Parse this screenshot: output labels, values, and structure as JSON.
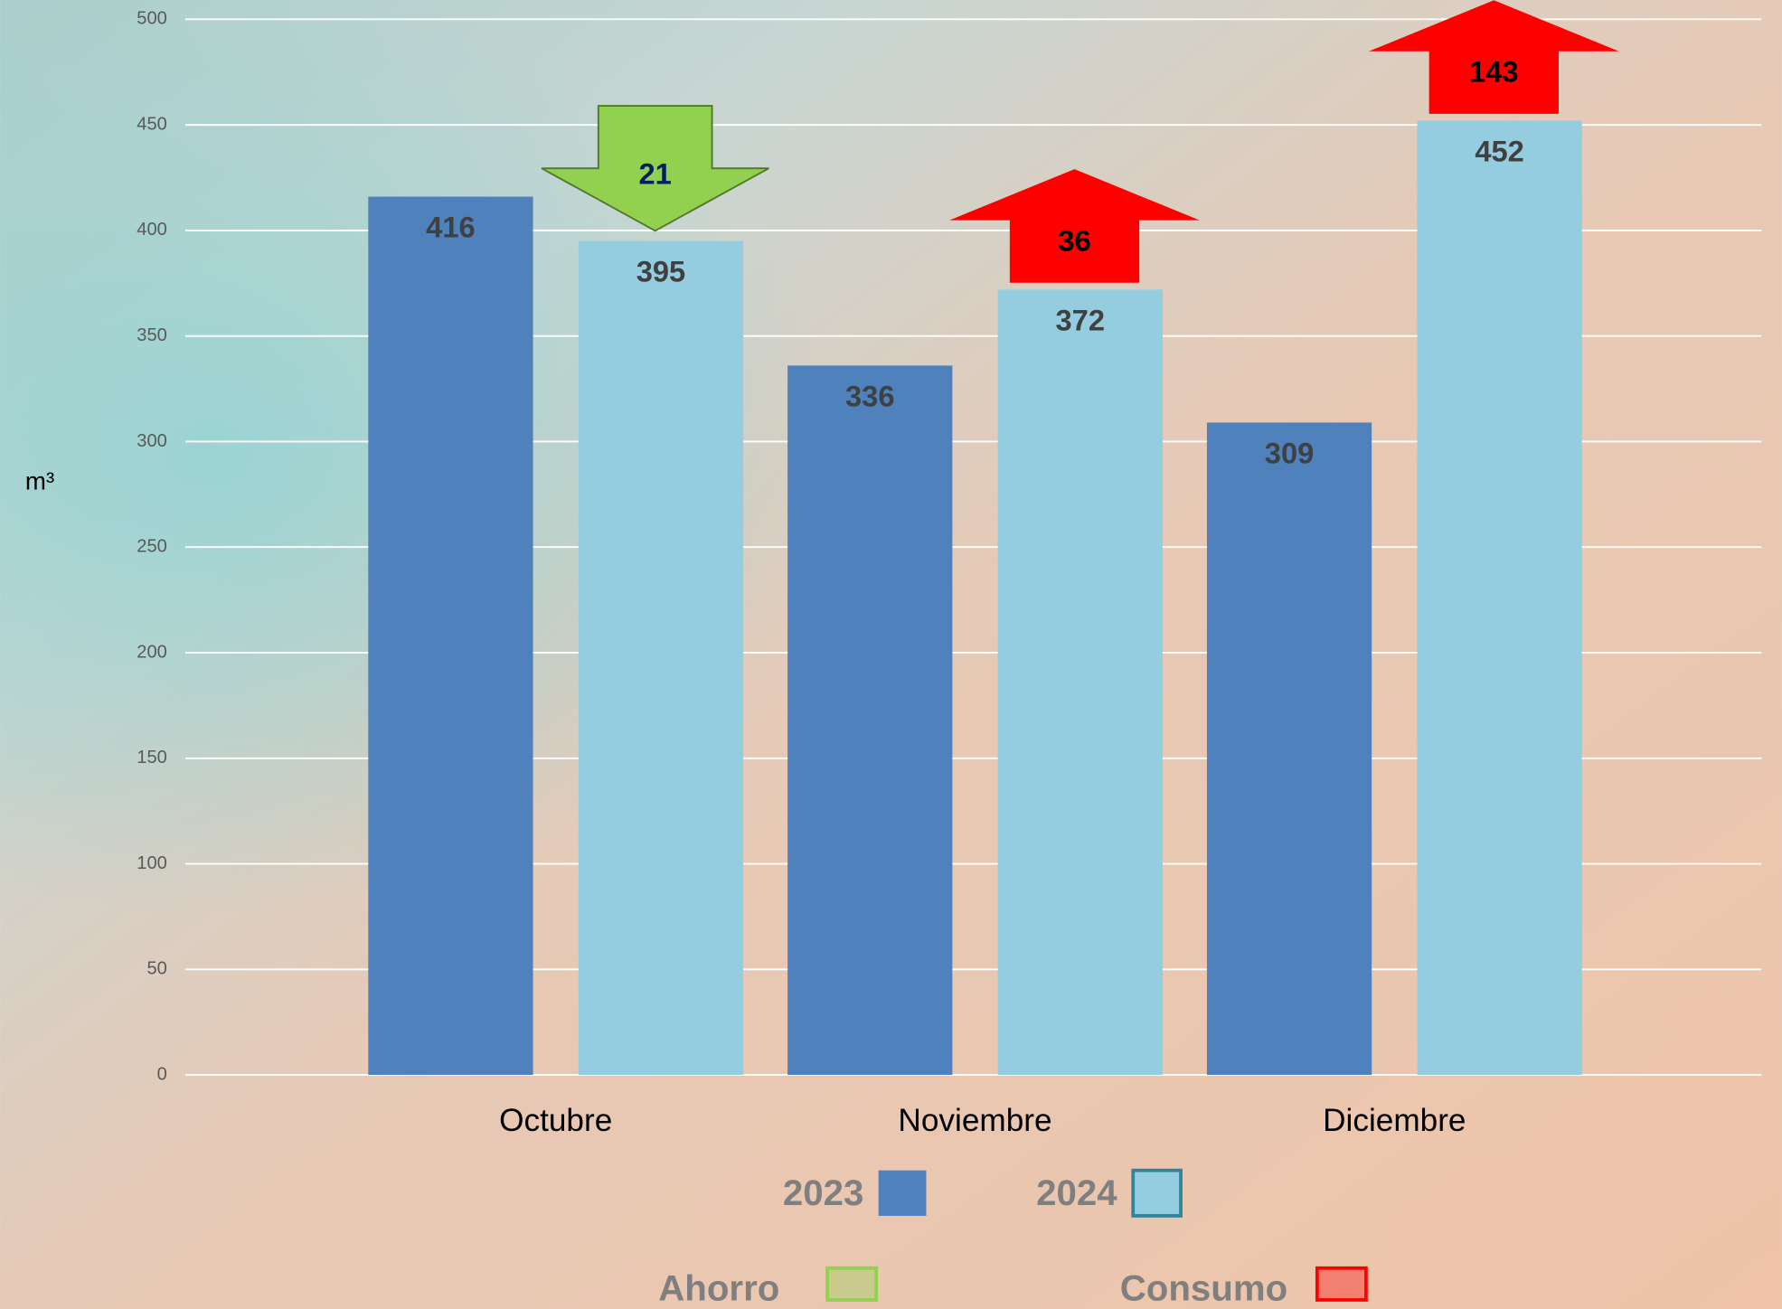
{
  "chart_data": {
    "type": "bar",
    "y_label": "m³",
    "categories": [
      "Octubre",
      "Noviembre",
      "Diciembre"
    ],
    "series": [
      {
        "name": "2023",
        "color": "#4f81bd",
        "values": [
          416,
          336,
          309
        ]
      },
      {
        "name": "2024",
        "color": "#93cddf",
        "values": [
          395,
          372,
          452
        ]
      }
    ],
    "ylim": [
      0,
      500
    ],
    "yticks": [
      0,
      50,
      100,
      150,
      200,
      250,
      300,
      350,
      400,
      450,
      500
    ],
    "grid": true,
    "change_types": [
      {
        "name": "Ahorro",
        "direction": "down",
        "color": "#92d050",
        "label_color": "#002060"
      },
      {
        "name": "Consumo",
        "direction": "up",
        "color": "#ff0000",
        "label_color": "#000000"
      }
    ],
    "changes": [
      {
        "value": 21,
        "direction": "down"
      },
      {
        "value": 36,
        "direction": "up"
      },
      {
        "value": 143,
        "direction": "up"
      }
    ]
  }
}
